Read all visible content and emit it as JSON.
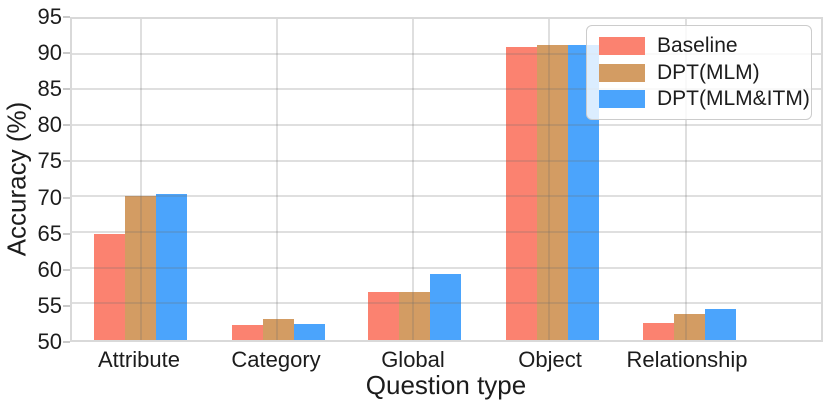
{
  "chart_data": {
    "type": "bar",
    "title": "",
    "xlabel": "Question type",
    "ylabel": "Accuracy (%)",
    "ylim": [
      50,
      95
    ],
    "yticks": [
      50,
      55,
      60,
      65,
      70,
      75,
      80,
      85,
      90,
      95
    ],
    "grid": true,
    "legend_position": "upper right",
    "categories": [
      "Attribute",
      "Category",
      "Global",
      "Object",
      "Relationship"
    ],
    "series": [
      {
        "name": "Baseline",
        "color": "#FB8270",
        "values": [
          64.9,
          52.1,
          56.7,
          91.1,
          52.4
        ]
      },
      {
        "name": "DPT(MLM)",
        "color": "#D39C63",
        "values": [
          70.2,
          52.9,
          56.7,
          91.4,
          53.6
        ]
      },
      {
        "name": "DPT(MLM&ITM)",
        "color": "#4BA4FC",
        "values": [
          70.4,
          52.3,
          59.3,
          91.4,
          54.3
        ]
      }
    ]
  }
}
